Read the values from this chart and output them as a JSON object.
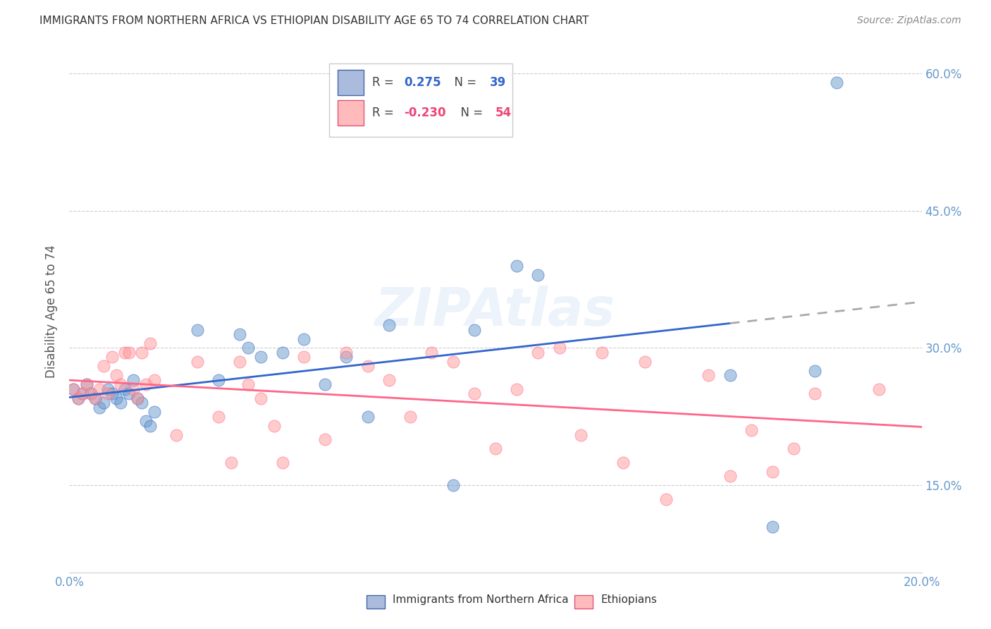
{
  "title": "IMMIGRANTS FROM NORTHERN AFRICA VS ETHIOPIAN DISABILITY AGE 65 TO 74 CORRELATION CHART",
  "source": "Source: ZipAtlas.com",
  "ylabel": "Disability Age 65 to 74",
  "xlim": [
    0.0,
    0.2
  ],
  "ylim": [
    0.055,
    0.625
  ],
  "yticks": [
    0.15,
    0.3,
    0.45,
    0.6
  ],
  "ytick_labels": [
    "15.0%",
    "30.0%",
    "45.0%",
    "60.0%"
  ],
  "xticks": [
    0.0,
    0.025,
    0.05,
    0.075,
    0.1,
    0.125,
    0.15,
    0.175,
    0.2
  ],
  "xtick_labels": [
    "0.0%",
    "",
    "",
    "",
    "",
    "",
    "",
    "",
    "20.0%"
  ],
  "legend_blue_r": "0.275",
  "legend_blue_n": "39",
  "legend_pink_r": "-0.230",
  "legend_pink_n": "54",
  "series1_color": "#6699CC",
  "series2_color": "#FF9999",
  "trendline1_color": "#3366CC",
  "trendline2_color": "#FF6688",
  "trendline1_dash_color": "#AAAAAA",
  "background_color": "#FFFFFF",
  "grid_color": "#CCCCCC",
  "watermark": "ZIPAtlas",
  "blue_scatter_x": [
    0.001,
    0.002,
    0.003,
    0.004,
    0.005,
    0.006,
    0.007,
    0.008,
    0.009,
    0.01,
    0.011,
    0.012,
    0.013,
    0.014,
    0.015,
    0.016,
    0.017,
    0.018,
    0.019,
    0.02,
    0.03,
    0.035,
    0.04,
    0.042,
    0.045,
    0.05,
    0.055,
    0.06,
    0.065,
    0.07,
    0.075,
    0.09,
    0.095,
    0.105,
    0.11,
    0.155,
    0.165,
    0.175,
    0.18
  ],
  "blue_scatter_y": [
    0.255,
    0.245,
    0.25,
    0.26,
    0.25,
    0.245,
    0.235,
    0.24,
    0.255,
    0.25,
    0.245,
    0.24,
    0.255,
    0.25,
    0.265,
    0.245,
    0.24,
    0.22,
    0.215,
    0.23,
    0.32,
    0.265,
    0.315,
    0.3,
    0.29,
    0.295,
    0.31,
    0.26,
    0.29,
    0.225,
    0.325,
    0.15,
    0.32,
    0.39,
    0.38,
    0.27,
    0.105,
    0.275,
    0.59
  ],
  "pink_scatter_x": [
    0.001,
    0.002,
    0.003,
    0.004,
    0.005,
    0.006,
    0.007,
    0.008,
    0.009,
    0.01,
    0.011,
    0.012,
    0.013,
    0.014,
    0.015,
    0.016,
    0.017,
    0.018,
    0.019,
    0.02,
    0.025,
    0.03,
    0.035,
    0.038,
    0.04,
    0.042,
    0.045,
    0.048,
    0.05,
    0.055,
    0.06,
    0.065,
    0.07,
    0.075,
    0.08,
    0.085,
    0.09,
    0.095,
    0.1,
    0.105,
    0.11,
    0.115,
    0.12,
    0.125,
    0.13,
    0.135,
    0.14,
    0.15,
    0.155,
    0.16,
    0.165,
    0.17,
    0.175,
    0.19
  ],
  "pink_scatter_y": [
    0.255,
    0.245,
    0.25,
    0.26,
    0.25,
    0.245,
    0.255,
    0.28,
    0.25,
    0.29,
    0.27,
    0.26,
    0.295,
    0.295,
    0.255,
    0.245,
    0.295,
    0.26,
    0.305,
    0.265,
    0.205,
    0.285,
    0.225,
    0.175,
    0.285,
    0.26,
    0.245,
    0.215,
    0.175,
    0.29,
    0.2,
    0.295,
    0.28,
    0.265,
    0.225,
    0.295,
    0.285,
    0.25,
    0.19,
    0.255,
    0.295,
    0.3,
    0.205,
    0.295,
    0.175,
    0.285,
    0.135,
    0.27,
    0.16,
    0.21,
    0.165,
    0.19,
    0.25,
    0.255
  ]
}
